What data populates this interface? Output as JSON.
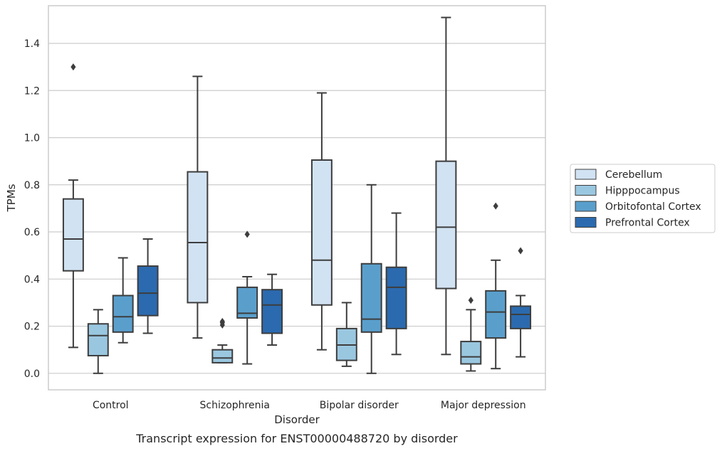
{
  "chart_data": {
    "type": "box",
    "caption": "Transcript expression for ENST00000488720 by disorder",
    "xlabel": "Disorder",
    "ylabel": "TPMs",
    "ylim": [
      -0.07,
      1.56
    ],
    "yticks": [
      0.0,
      0.2,
      0.4,
      0.6,
      0.8,
      1.0,
      1.2,
      1.4
    ],
    "ytick_labels": [
      "0.0",
      "0.2",
      "0.4",
      "0.6",
      "0.8",
      "1.0",
      "1.2",
      "1.4"
    ],
    "grid": true,
    "legend_position": "right",
    "categories": [
      "Control",
      "Schizophrenia",
      "Bipolar disorder",
      "Major depression"
    ],
    "series": [
      {
        "name": "Cerebellum",
        "color": "#d1e2f2",
        "boxes": [
          {
            "whisker_low": 0.11,
            "q1": 0.435,
            "median": 0.57,
            "q3": 0.74,
            "whisker_high": 0.82,
            "outliers": [
              1.3
            ]
          },
          {
            "whisker_low": 0.15,
            "q1": 0.3,
            "median": 0.555,
            "q3": 0.855,
            "whisker_high": 1.26,
            "outliers": []
          },
          {
            "whisker_low": 0.1,
            "q1": 0.29,
            "median": 0.48,
            "q3": 0.905,
            "whisker_high": 1.19,
            "outliers": []
          },
          {
            "whisker_low": 0.08,
            "q1": 0.36,
            "median": 0.62,
            "q3": 0.9,
            "whisker_high": 1.51,
            "outliers": []
          }
        ]
      },
      {
        "name": "Hipppocampus",
        "color": "#9ac7e0",
        "boxes": [
          {
            "whisker_low": 0.0,
            "q1": 0.075,
            "median": 0.16,
            "q3": 0.21,
            "whisker_high": 0.27,
            "outliers": []
          },
          {
            "whisker_low": 0.045,
            "q1": 0.045,
            "median": 0.065,
            "q3": 0.1,
            "whisker_high": 0.12,
            "outliers": [
              0.205,
              0.215,
              0.22
            ]
          },
          {
            "whisker_low": 0.03,
            "q1": 0.055,
            "median": 0.12,
            "q3": 0.19,
            "whisker_high": 0.3,
            "outliers": []
          },
          {
            "whisker_low": 0.01,
            "q1": 0.04,
            "median": 0.07,
            "q3": 0.135,
            "whisker_high": 0.27,
            "outliers": [
              0.31
            ]
          }
        ]
      },
      {
        "name": "Orbitofontal Cortex",
        "color": "#5a9fcc",
        "boxes": [
          {
            "whisker_low": 0.13,
            "q1": 0.175,
            "median": 0.24,
            "q3": 0.33,
            "whisker_high": 0.49,
            "outliers": []
          },
          {
            "whisker_low": 0.04,
            "q1": 0.235,
            "median": 0.255,
            "q3": 0.365,
            "whisker_high": 0.41,
            "outliers": [
              0.59
            ]
          },
          {
            "whisker_low": 0.0,
            "q1": 0.175,
            "median": 0.23,
            "q3": 0.465,
            "whisker_high": 0.8,
            "outliers": []
          },
          {
            "whisker_low": 0.02,
            "q1": 0.15,
            "median": 0.26,
            "q3": 0.35,
            "whisker_high": 0.48,
            "outliers": [
              0.71
            ]
          }
        ]
      },
      {
        "name": "Prefrontal Cortex",
        "color": "#2b6aaf",
        "boxes": [
          {
            "whisker_low": 0.17,
            "q1": 0.245,
            "median": 0.34,
            "q3": 0.455,
            "whisker_high": 0.57,
            "outliers": []
          },
          {
            "whisker_low": 0.12,
            "q1": 0.17,
            "median": 0.29,
            "q3": 0.355,
            "whisker_high": 0.42,
            "outliers": []
          },
          {
            "whisker_low": 0.08,
            "q1": 0.19,
            "median": 0.365,
            "q3": 0.45,
            "whisker_high": 0.68,
            "outliers": []
          },
          {
            "whisker_low": 0.07,
            "q1": 0.19,
            "median": 0.25,
            "q3": 0.285,
            "whisker_high": 0.33,
            "outliers": [
              0.52
            ]
          }
        ]
      }
    ]
  }
}
